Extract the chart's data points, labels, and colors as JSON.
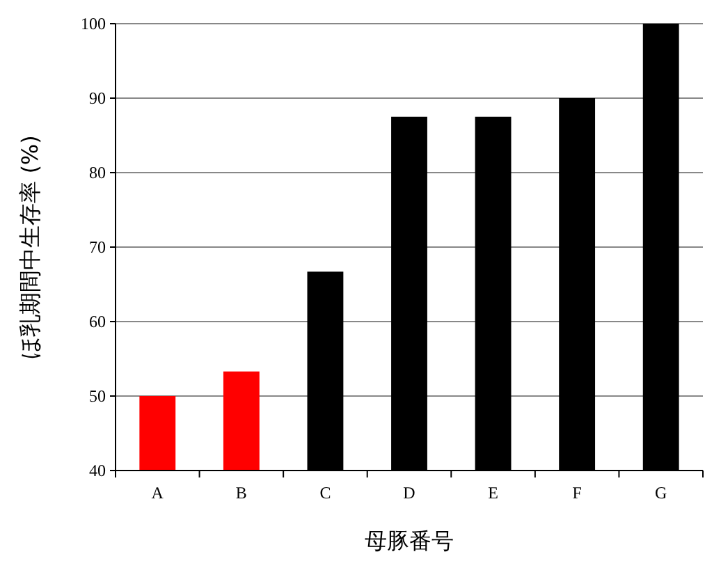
{
  "chart_data": {
    "type": "bar",
    "xlabel": "母豚番号",
    "ylabel": "ほ乳期間中生存率 (%)",
    "categories": [
      "A",
      "B",
      "C",
      "D",
      "E",
      "F",
      "G"
    ],
    "values": [
      50,
      53.3,
      66.7,
      87.5,
      87.5,
      90,
      100
    ],
    "colors": [
      "#ff0000",
      "#ff0000",
      "#000000",
      "#000000",
      "#000000",
      "#000000",
      "#000000"
    ],
    "ylim": [
      40,
      100
    ],
    "yticks": [
      40,
      50,
      60,
      70,
      80,
      90,
      100
    ],
    "grid": "y"
  }
}
